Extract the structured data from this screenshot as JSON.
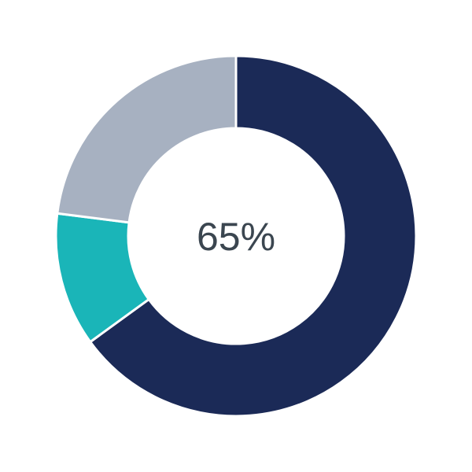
{
  "chart_data": {
    "type": "pie",
    "variant": "donut",
    "center_label": "65%",
    "start": "top",
    "direction": "clockwise",
    "segments": [
      {
        "value": 65,
        "color": "#1b2a57"
      },
      {
        "value": 12,
        "color": "#1ab5b8"
      },
      {
        "value": 23,
        "color": "#a7b1c1"
      }
    ]
  }
}
